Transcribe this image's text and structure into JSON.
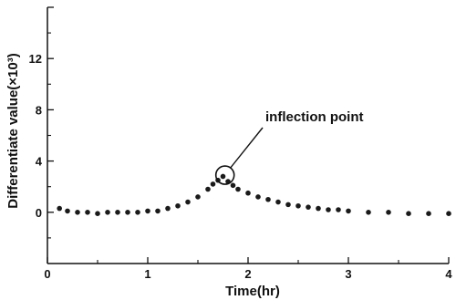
{
  "chart_data": {
    "type": "scatter",
    "title": "",
    "xlabel": "Time(hr)",
    "ylabel": "Differentiate value(×10³)",
    "xlim": [
      0,
      4
    ],
    "ylim": [
      -4,
      16
    ],
    "x_ticks": [
      0,
      1,
      2,
      3,
      4
    ],
    "x_tick_labels": [
      "0",
      "1",
      "2",
      "3",
      "4"
    ],
    "y_ticks": [
      0,
      4,
      8,
      12
    ],
    "y_tick_labels": [
      "0",
      "4",
      "8",
      "12"
    ],
    "grid": false,
    "legend": "none",
    "marker_color": "#1a1a1a",
    "series": [
      {
        "x": [
          0.12,
          0.2,
          0.3,
          0.4,
          0.5,
          0.6,
          0.7,
          0.8,
          0.9,
          1.0,
          1.1,
          1.2,
          1.3,
          1.4,
          1.5,
          1.6,
          1.65,
          1.7,
          1.75,
          1.8,
          1.85,
          1.9,
          2.0,
          2.1,
          2.2,
          2.3,
          2.4,
          2.5,
          2.6,
          2.7,
          2.8,
          2.9,
          3.0,
          3.2,
          3.4,
          3.6,
          3.8,
          4.0
        ],
        "values": [
          0.3,
          0.1,
          0.0,
          0.0,
          -0.1,
          0.0,
          0.0,
          0.0,
          0.0,
          0.1,
          0.1,
          0.3,
          0.5,
          0.8,
          1.2,
          1.8,
          2.2,
          2.5,
          2.8,
          2.4,
          2.1,
          1.8,
          1.5,
          1.2,
          1.0,
          0.8,
          0.6,
          0.5,
          0.4,
          0.3,
          0.2,
          0.2,
          0.1,
          0.0,
          0.0,
          -0.1,
          -0.1,
          -0.1
        ]
      }
    ],
    "annotation": {
      "text": "inflection point",
      "x": 1.77,
      "y": 2.9
    }
  }
}
